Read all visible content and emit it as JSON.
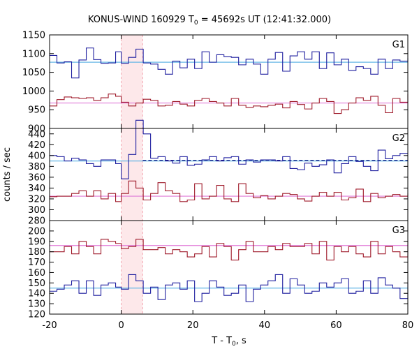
{
  "chart_data": {
    "type": "line",
    "title": "KONUS-WIND 160929 T",
    "title_sub": "0",
    "title_rest": " = 45692s UT (12:41:32.000)",
    "xlabel": "T - T",
    "xlabel_sub": "0",
    "xlabel_rest": ", s",
    "ylabel": "counts / sec",
    "xlim": [
      -20,
      80
    ],
    "x_ticks": [
      -20,
      0,
      20,
      40,
      60,
      80
    ],
    "highlight_region": [
      0,
      6
    ],
    "colors": {
      "blue": "#1f1f9f",
      "red": "#9f1a2a",
      "cyan": "#66b7e6",
      "pink": "#e07ad8",
      "highlight": "#fde8ea"
    },
    "bin_edges": [
      -20,
      -17.952,
      -15.904,
      -13.856,
      -11.808,
      -9.76,
      -7.712,
      -5.664,
      -3.616,
      -1.568,
      0,
      2.048,
      4.096,
      6.144,
      8.192,
      10.24,
      12.288,
      14.336,
      16.384,
      18.432,
      20.48,
      22.528,
      24.576,
      26.624,
      28.672,
      30.72,
      32.768,
      34.816,
      36.864,
      38.912,
      40.96,
      43.008,
      45.056,
      47.104,
      49.152,
      51.2,
      53.248,
      55.296,
      57.344,
      59.392,
      61.44,
      63.488,
      65.536,
      67.584,
      69.632,
      71.68,
      73.728,
      75.776,
      77.824,
      80
    ],
    "panels": [
      {
        "label": "G1",
        "ylim": [
          900,
          1150
        ],
        "y_ticks": [
          900,
          950,
          1000,
          1050,
          1100,
          1150
        ],
        "series": [
          {
            "color": "blue",
            "values": [
              1095,
              1075,
              1078,
              1035,
              1083,
              1115,
              1084,
              1074,
              1075,
              1105,
              1074,
              1090,
              1112,
              1075,
              1072,
              1058,
              1045,
              1080,
              1062,
              1085,
              1060,
              1105,
              1077,
              1097,
              1092,
              1090,
              1070,
              1085,
              1072,
              1045,
              1085,
              1103,
              1053,
              1094,
              1105,
              1085,
              1105,
              1060,
              1102,
              1070,
              1085,
              1055,
              1065,
              1060,
              1045,
              1085,
              1060,
              1083,
              1080,
              1088
            ],
            "baseline": 1077,
            "baseline_color": "cyan"
          },
          {
            "color": "red",
            "values": [
              960,
              977,
              984,
              982,
              980,
              982,
              975,
              982,
              992,
              986,
              970,
              960,
              968,
              978,
              975,
              960,
              962,
              972,
              965,
              960,
              975,
              980,
              972,
              968,
              960,
              980,
              962,
              956,
              960,
              958,
              962,
              965,
              955,
              972,
              964,
              952,
              968,
              980,
              972,
              940,
              950,
              968,
              982,
              975,
              986,
              962,
              942,
              980,
              970,
              992
            ],
            "baseline": 968,
            "baseline_color": "pink"
          }
        ]
      },
      {
        "label": "G2",
        "ylim": [
          280,
          450
        ],
        "y_ticks": [
          280,
          300,
          320,
          340,
          360,
          380,
          400,
          420,
          440
        ],
        "series": [
          {
            "color": "blue",
            "values": [
              400,
              398,
              390,
              395,
              392,
              385,
              380,
              392,
              392,
              385,
              357,
              402,
              465,
              440,
              395,
              398,
              390,
              386,
              398,
              382,
              384,
              392,
              398,
              390,
              396,
              398,
              384,
              392,
              388,
              392,
              392,
              390,
              398,
              376,
              374,
              386,
              380,
              383,
              392,
              368,
              385,
              398,
              389,
              380,
              372,
              410,
              394,
              400,
              404,
              404
            ],
            "baseline": 390,
            "baseline_color": "cyan",
            "dashed_baseline_from": 6
          },
          {
            "color": "red",
            "values": [
              324,
              325,
              325,
              330,
              335,
              325,
              335,
              320,
              330,
              315,
              330,
              353,
              340,
              318,
              330,
              350,
              335,
              330,
              315,
              318,
              348,
              320,
              325,
              345,
              320,
              315,
              348,
              330,
              322,
              326,
              320,
              325,
              330,
              328,
              320,
              316,
              325,
              332,
              325,
              332,
              318,
              322,
              338,
              315,
              330,
              322,
              325,
              328,
              325,
              330
            ],
            "baseline": 325,
            "baseline_color": "pink"
          }
        ]
      },
      {
        "label": "G3",
        "ylim": [
          120,
          210
        ],
        "y_ticks": [
          120,
          130,
          140,
          150,
          160,
          170,
          180,
          190,
          200
        ],
        "series": [
          {
            "color": "red",
            "values": [
              180,
              180,
              185,
              178,
              190,
              185,
              178,
              192,
              190,
              188,
              183,
              185,
              192,
              182,
              182,
              184,
              178,
              182,
              180,
              175,
              178,
              185,
              175,
              188,
              185,
              172,
              182,
              190,
              180,
              180,
              185,
              182,
              188,
              185,
              185,
              188,
              178,
              190,
              172,
              185,
              180,
              185,
              178,
              175,
              190,
              178,
              185,
              180,
              175,
              190
            ],
            "baseline": 186,
            "baseline_color": "pink"
          },
          {
            "color": "blue",
            "values": [
              142,
              144,
              148,
              152,
              140,
              152,
              138,
              148,
              150,
              146,
              144,
              158,
              152,
              140,
              146,
              134,
              148,
              150,
              144,
              152,
              132,
              140,
              152,
              146,
              138,
              140,
              148,
              132,
              144,
              148,
              152,
              158,
              140,
              154,
              148,
              140,
              142,
              150,
              146,
              150,
              154,
              140,
              142,
              152,
              140,
              155,
              148,
              145,
              135,
              150
            ],
            "baseline": 145,
            "baseline_color": "cyan"
          }
        ]
      }
    ]
  }
}
